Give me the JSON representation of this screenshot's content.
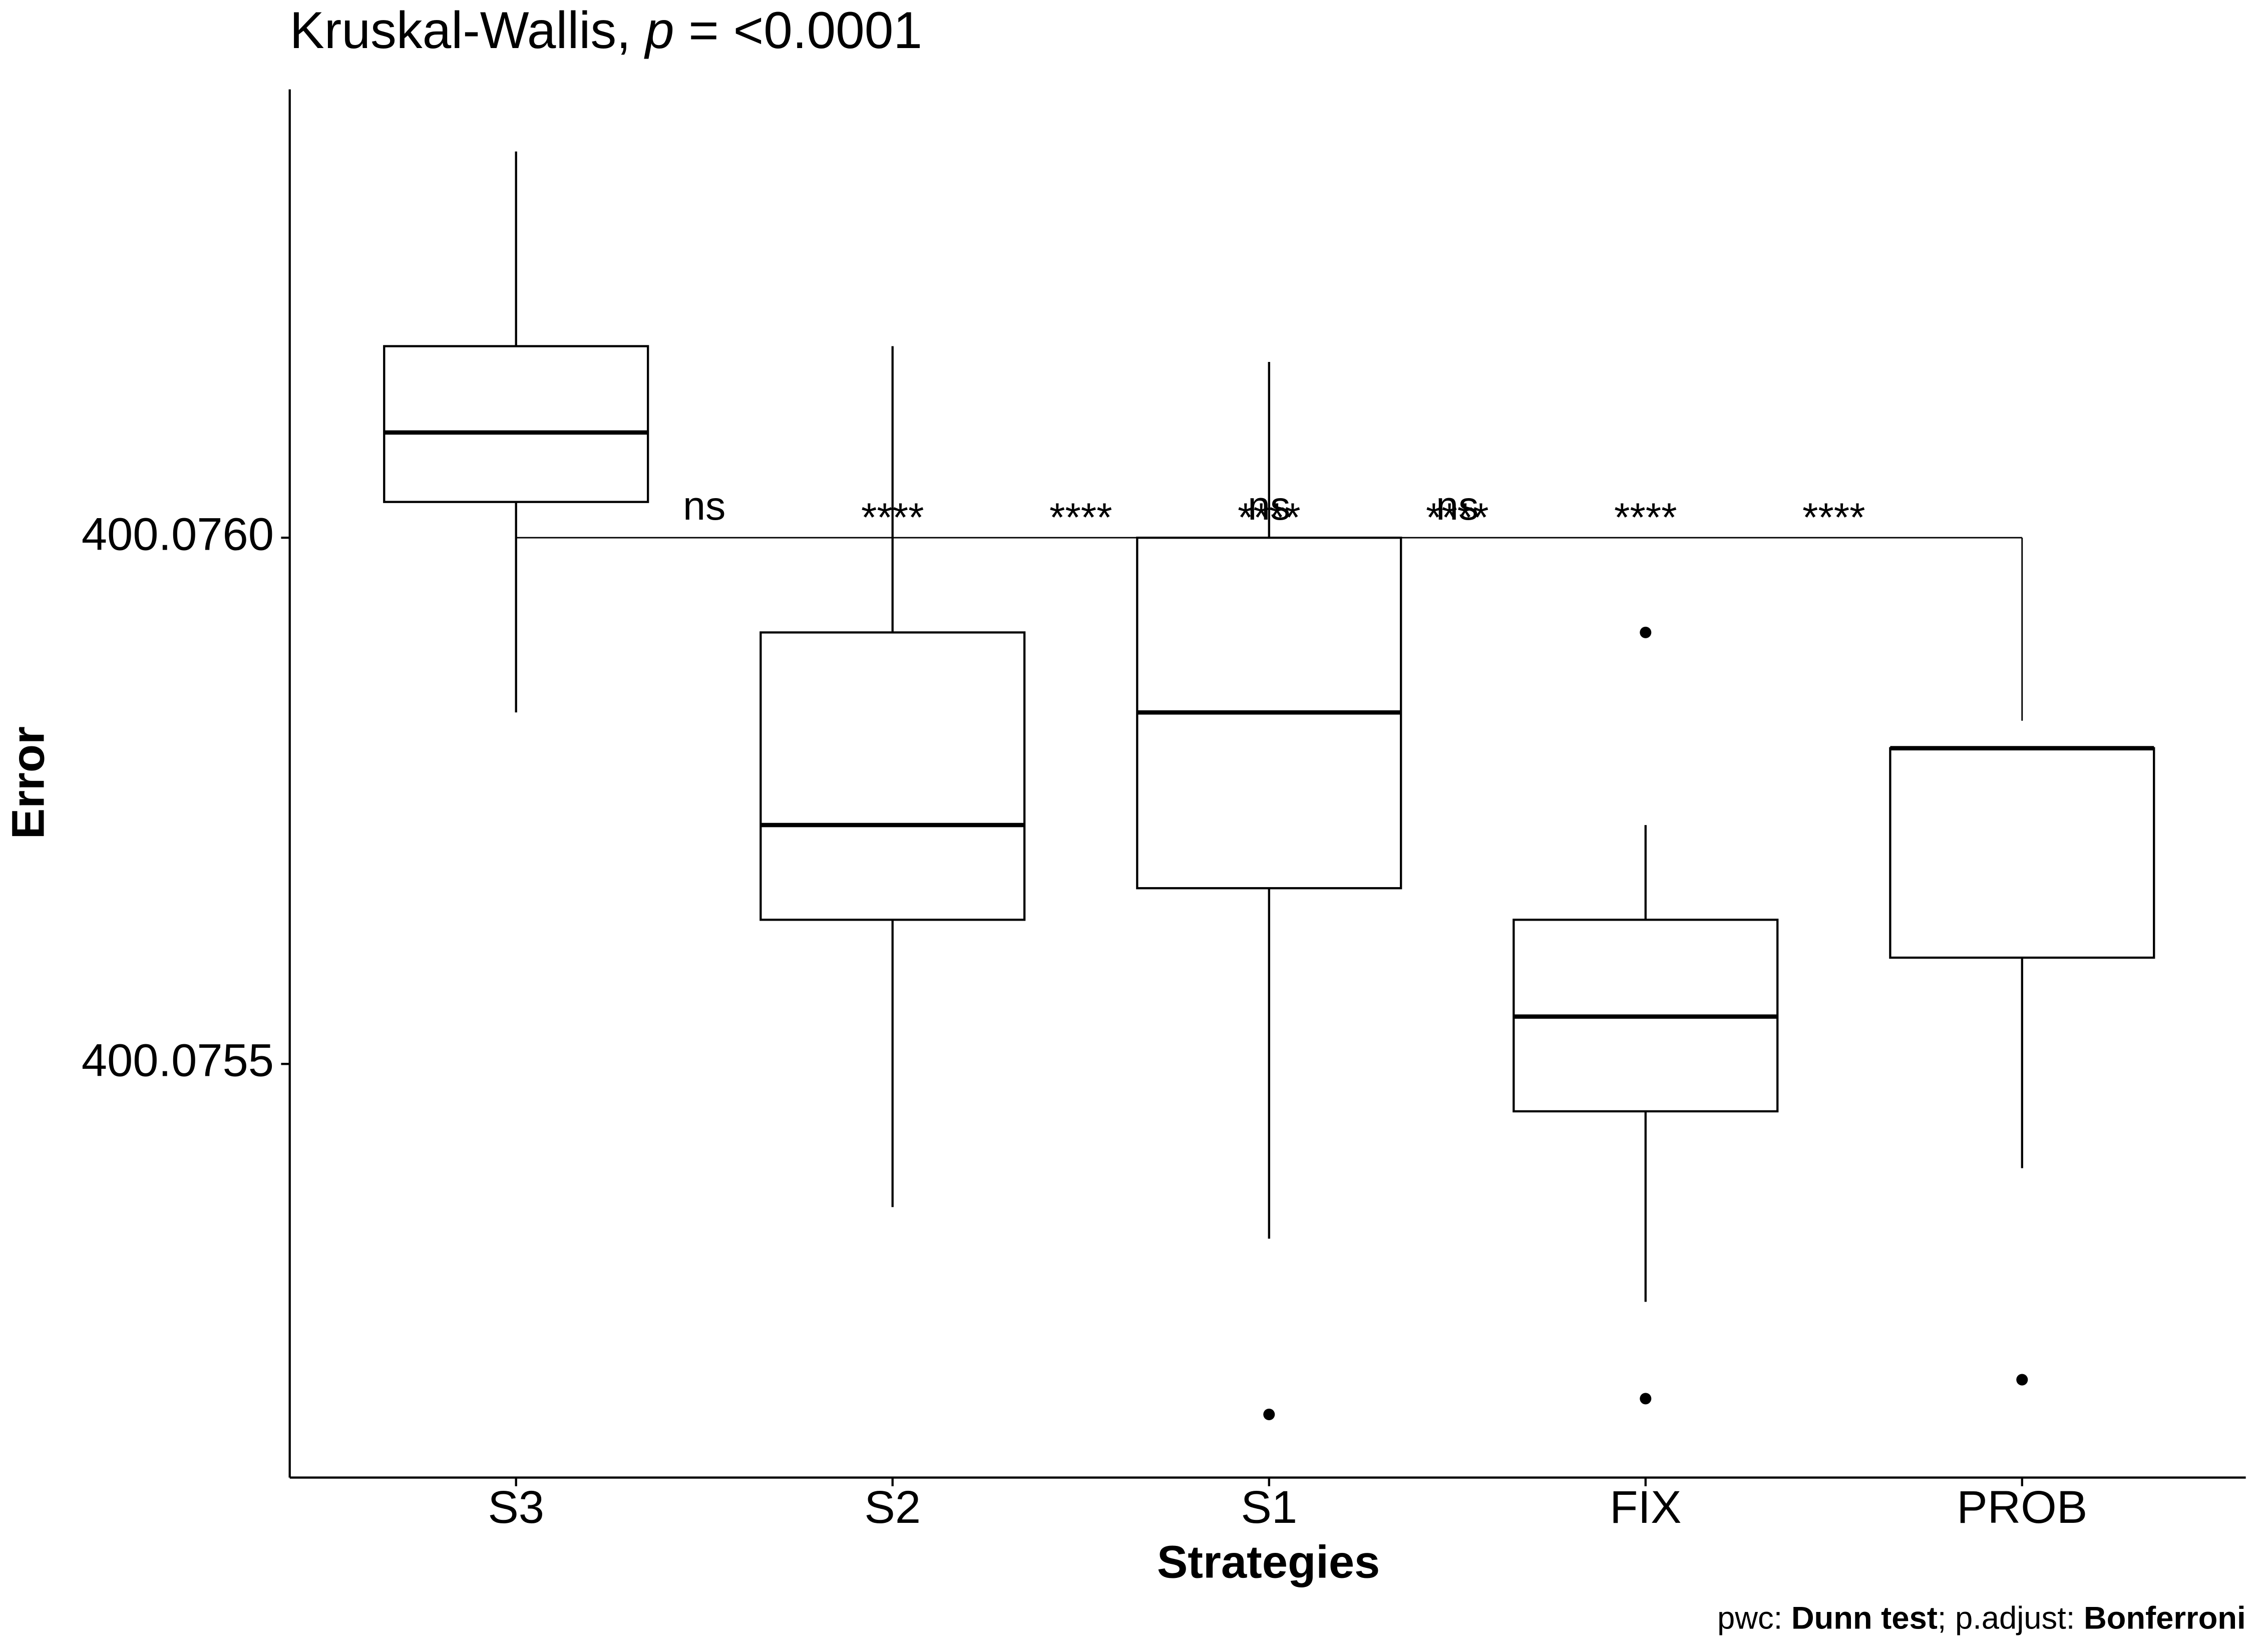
{
  "chart_data": {
    "type": "box",
    "title_parts": [
      "Kruskal-Wallis, ",
      "p",
      " = <0.0001"
    ],
    "x_label": "Strategies",
    "y_label": "Error",
    "categories": [
      "S3",
      "S2",
      "S1",
      "FIX",
      "PROB"
    ],
    "boxes": [
      {
        "whisker_low": 400.075834,
        "q1": 400.076034,
        "median": 400.0761,
        "q3": 400.076182,
        "whisker_high": 400.076367,
        "outliers": []
      },
      {
        "whisker_low": 400.075364,
        "q1": 400.075637,
        "median": 400.075727,
        "q3": 400.07591,
        "whisker_high": 400.076182,
        "outliers": []
      },
      {
        "whisker_low": 400.075334,
        "q1": 400.075667,
        "median": 400.075834,
        "q3": 400.076,
        "whisker_high": 400.076167,
        "outliers": [
          400.075167
        ]
      },
      {
        "whisker_low": 400.075274,
        "q1": 400.075455,
        "median": 400.075545,
        "q3": 400.075637,
        "whisker_high": 400.075727,
        "outliers": [
          400.07591,
          400.075182
        ]
      },
      {
        "whisker_low": 400.075401,
        "q1": 400.075601,
        "median": 400.0758,
        "q3": 400.0758,
        "whisker_high": 400.0758,
        "outliers": [
          400.0752
        ]
      }
    ],
    "significance_labels": [
      "ns",
      "****",
      "****",
      "****",
      "ns",
      "****",
      "ns",
      "****",
      "****"
    ],
    "color": "#000000",
    "ylim": [
      400.075107,
      400.076426
    ],
    "yticks": [
      {
        "value": 400.076,
        "label": "400.0760"
      },
      400.0755
    ],
    "caption_parts": [
      "pwc: ",
      "Dunn test",
      "; p.adjust: ",
      "Bonferroni"
    ]
  }
}
